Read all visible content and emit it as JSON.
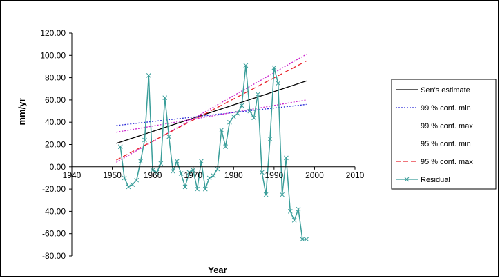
{
  "chart_data": {
    "type": "line",
    "xlabel": "Year",
    "ylabel": "mm/yr",
    "xlim": [
      1940,
      2010
    ],
    "ylim": [
      -80,
      120
    ],
    "x_ticks": [
      "1940",
      "1950",
      "1960",
      "1970",
      "1980",
      "1990",
      "2000",
      "2010"
    ],
    "y_ticks": [
      "120.00",
      "100.00",
      "80.00",
      "60.00",
      "40.00",
      "20.00",
      "0.00",
      "-20.00",
      "-40.00",
      "-60.00",
      "-80.00"
    ],
    "grid": false,
    "legend_position": "right",
    "series": [
      {
        "name": "Sen's estimate",
        "style": "solid",
        "color": "#000000",
        "x": [
          1951,
          1998
        ],
        "y": [
          21,
          77
        ]
      },
      {
        "name": "99 % conf. min",
        "style": "dotted",
        "color": "#2a2ad8",
        "x": [
          1951,
          1998
        ],
        "y": [
          37,
          56
        ]
      },
      {
        "name": "99 % conf. max",
        "style": "dotted",
        "color": "#cc22cc",
        "x": [
          1951,
          1998
        ],
        "y": [
          4,
          101
        ]
      },
      {
        "name": "95 % conf. min",
        "style": "dotted",
        "color": "#cc22cc",
        "x": [
          1951,
          1998
        ],
        "y": [
          31,
          60
        ]
      },
      {
        "name": "95 % conf. max",
        "style": "dashed",
        "color": "#e8222a",
        "x": [
          1951,
          1998
        ],
        "y": [
          6,
          95
        ]
      },
      {
        "name": "Residual",
        "style": "solid-marker",
        "color": "#3a9e9a",
        "x": [
          1952,
          1953,
          1954,
          1955,
          1956,
          1957,
          1958,
          1959,
          1960,
          1961,
          1962,
          1963,
          1964,
          1965,
          1966,
          1967,
          1968,
          1969,
          1970,
          1971,
          1972,
          1973,
          1974,
          1975,
          1976,
          1977,
          1978,
          1979,
          1980,
          1981,
          1982,
          1983,
          1984,
          1985,
          1986,
          1987,
          1988,
          1989,
          1990,
          1991,
          1992,
          1993,
          1994,
          1995,
          1996,
          1997,
          1998
        ],
        "y": [
          18,
          -10,
          -18,
          -16,
          -12,
          5,
          24,
          82,
          -3,
          -5,
          3,
          62,
          27,
          -4,
          5,
          -6,
          -18,
          -5,
          -3,
          -20,
          5,
          -20,
          -10,
          -8,
          -2,
          33,
          18,
          40,
          45,
          48,
          55,
          91,
          50,
          44,
          65,
          -5,
          -25,
          25,
          89,
          75,
          -25,
          8,
          -40,
          -48,
          -38,
          -65,
          -65
        ]
      }
    ],
    "legend": {
      "entries": [
        "Sen's estimate",
        "99 % conf. min",
        "99 % conf. max",
        "95 % conf. min",
        "95 % conf. max",
        "Residual"
      ]
    }
  }
}
